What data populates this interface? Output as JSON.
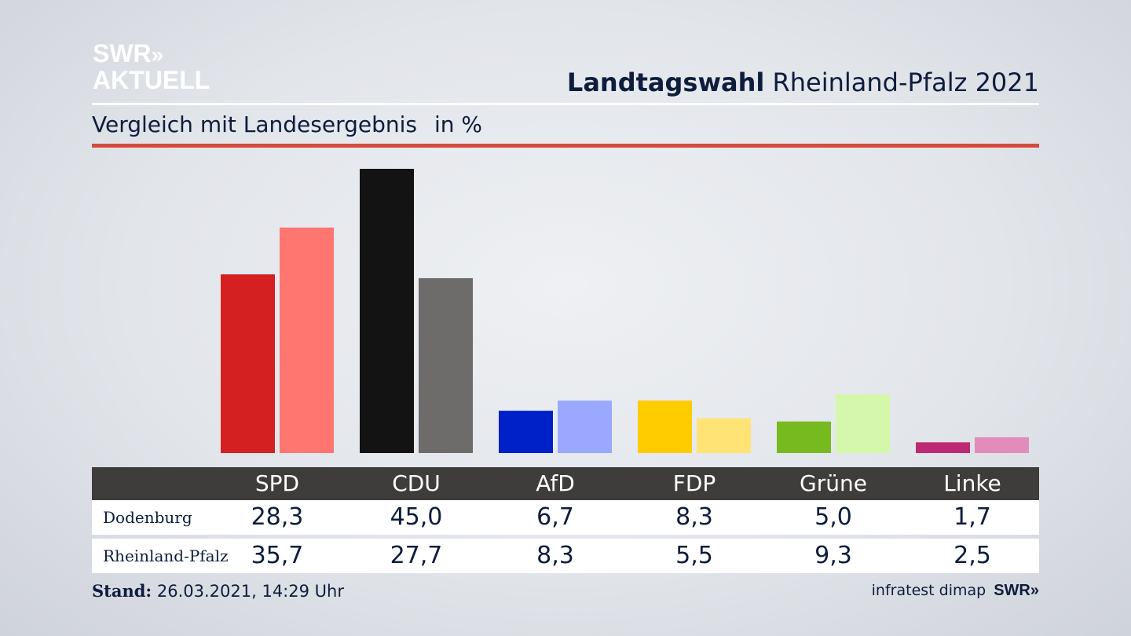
{
  "logo": {
    "line1": "SWR",
    "chevrons": "»",
    "line2": "AKTUELL"
  },
  "header": {
    "title_bold": "Landtagswahl",
    "title_rest": "Rheinland-Pfalz 2021"
  },
  "subtitle": {
    "text": "Vergleich mit Landesergebnis",
    "unit": "in %"
  },
  "colors": {
    "accent_rule": "#d34b3d",
    "table_header_bg": "#3e3d3c",
    "SPD": [
      "#d42020",
      "#ff7570"
    ],
    "CDU": [
      "#131313",
      "#6d6c6b"
    ],
    "AfD": [
      "#0021c8",
      "#9aa9ff"
    ],
    "FDP": [
      "#ffcc00",
      "#ffe375"
    ],
    "Grüne": [
      "#76ba1f",
      "#d5f7ac"
    ],
    "Linke": [
      "#be2a72",
      "#e28cbc"
    ]
  },
  "chart_data": {
    "type": "bar",
    "categories": [
      "SPD",
      "CDU",
      "AfD",
      "FDP",
      "Grüne",
      "Linke"
    ],
    "series": [
      {
        "name": "Dodenburg",
        "values": [
          28.3,
          45.0,
          6.7,
          8.3,
          5.0,
          1.7
        ]
      },
      {
        "name": "Rheinland-Pfalz",
        "values": [
          35.7,
          27.7,
          8.3,
          5.5,
          9.3,
          2.5
        ]
      }
    ],
    "title": "Landtagswahl Rheinland-Pfalz 2021",
    "subtitle": "Vergleich mit Landesergebnis",
    "unit": "in %",
    "grid": false
  },
  "table": {
    "rows": [
      {
        "label": "Dodenburg",
        "values": [
          "28,3",
          "45,0",
          "6,7",
          "8,3",
          "5,0",
          "1,7"
        ]
      },
      {
        "label": "Rheinland-Pfalz",
        "values": [
          "35,7",
          "27,7",
          "8,3",
          "5,5",
          "9,3",
          "2,5"
        ]
      }
    ]
  },
  "footer": {
    "stand_label": "Stand:",
    "stand_value": "26.03.2021, 14:29 Uhr",
    "source": "infratest dimap",
    "brand": "SWR»"
  }
}
